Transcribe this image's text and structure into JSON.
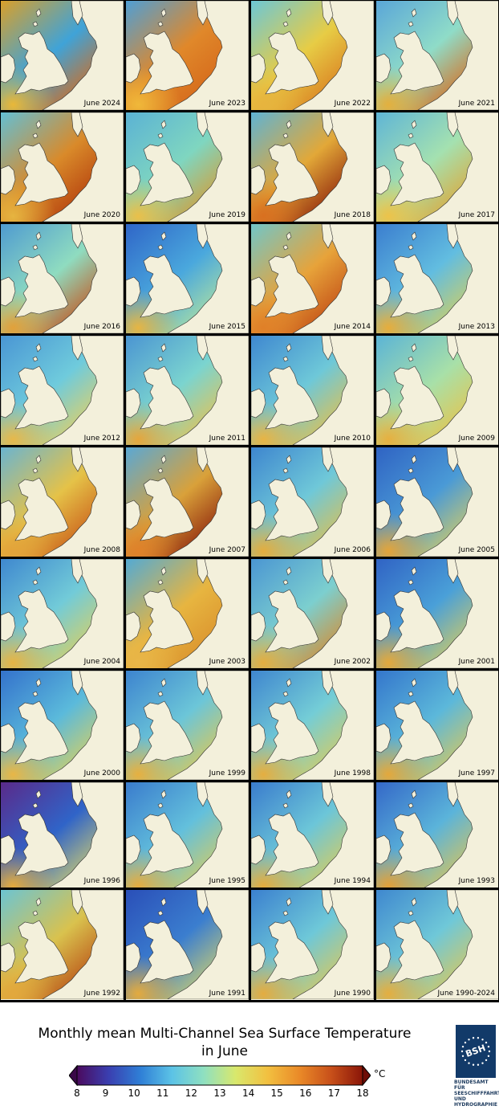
{
  "tiles": [
    {
      "label": "June 2024",
      "colors": [
        "#d9a02a",
        "#3fa3d8",
        "#d96a18",
        "#e9b838"
      ]
    },
    {
      "label": "June 2023",
      "colors": [
        "#4f9fd5",
        "#e0882a",
        "#d4661a",
        "#f0b83a"
      ]
    },
    {
      "label": "June 2022",
      "colors": [
        "#6cc7d6",
        "#e7cc45",
        "#d97a20",
        "#e7b43e"
      ]
    },
    {
      "label": "June 2021",
      "colors": [
        "#5aa6d8",
        "#8fdcc8",
        "#d96b1c",
        "#e3b03e"
      ]
    },
    {
      "label": "June 2020",
      "colors": [
        "#63bfd4",
        "#d98a2a",
        "#b23a0c",
        "#e6b440"
      ]
    },
    {
      "label": "June 2019",
      "colors": [
        "#5bb2d4",
        "#7fd6c0",
        "#d99a30",
        "#e9c04a"
      ]
    },
    {
      "label": "June 2018",
      "colors": [
        "#5fb3d3",
        "#e2a838",
        "#8c1f0a",
        "#d97020"
      ]
    },
    {
      "label": "June 2017",
      "colors": [
        "#5fb5d6",
        "#a4e1b0",
        "#e0a535",
        "#ecc34a"
      ]
    },
    {
      "label": "June 2016",
      "colors": [
        "#4f9bd0",
        "#8fdcc0",
        "#c5511a",
        "#e2a13a"
      ]
    },
    {
      "label": "June 2015",
      "colors": [
        "#2f66c8",
        "#4aa8dd",
        "#b2e3a0",
        "#e6b543"
      ]
    },
    {
      "label": "June 2014",
      "colors": [
        "#71c6c8",
        "#e7a33a",
        "#c04814",
        "#e08028"
      ]
    },
    {
      "label": "June 2013",
      "colors": [
        "#3b7ecf",
        "#62bde0",
        "#d3cf60",
        "#e6ad3c"
      ]
    },
    {
      "label": "June 2012",
      "colors": [
        "#4a96d4",
        "#6fcbdc",
        "#e8d060",
        "#e7b84a"
      ]
    },
    {
      "label": "June 2011",
      "colors": [
        "#4b95d2",
        "#7bd4cf",
        "#e9c250",
        "#e5a63c"
      ]
    },
    {
      "label": "June 2010",
      "colors": [
        "#3f88d0",
        "#6ec8d8",
        "#e7c04a",
        "#e8b444"
      ]
    },
    {
      "label": "June 2009",
      "colors": [
        "#5bb4d6",
        "#a8e0a8",
        "#e8c34a",
        "#e6b040"
      ]
    },
    {
      "label": "June 2008",
      "colors": [
        "#6ab4d0",
        "#e5c248",
        "#c95818",
        "#e3a43a"
      ]
    },
    {
      "label": "June 2007",
      "colors": [
        "#5aa8d4",
        "#d9a13a",
        "#8a1d0a",
        "#e0822a"
      ]
    },
    {
      "label": "June 2006",
      "colors": [
        "#3e86cf",
        "#6fc8d8",
        "#dfc050",
        "#e4ad3e"
      ]
    },
    {
      "label": "June 2005",
      "colors": [
        "#2f63c3",
        "#4a9ad6",
        "#d4cc66",
        "#e3a43a"
      ]
    },
    {
      "label": "June 2004",
      "colors": [
        "#3f88cf",
        "#72cbd8",
        "#dcd060",
        "#e7b444"
      ]
    },
    {
      "label": "June 2003",
      "colors": [
        "#53aad4",
        "#e7b540",
        "#d98f2c",
        "#e9b648"
      ]
    },
    {
      "label": "June 2002",
      "colors": [
        "#4b96d2",
        "#7ccfcf",
        "#d98a2c",
        "#e4ae40"
      ]
    },
    {
      "label": "June 2001",
      "colors": [
        "#3063c4",
        "#4aa0d8",
        "#d5cb62",
        "#e3a83c"
      ]
    },
    {
      "label": "June 2000",
      "colors": [
        "#3472cc",
        "#5bbadb",
        "#d9d060",
        "#e8b646"
      ]
    },
    {
      "label": "June 1999",
      "colors": [
        "#3d84cf",
        "#6cc6d8",
        "#e0c852",
        "#e6b040"
      ]
    },
    {
      "label": "June 1998",
      "colors": [
        "#3f86cf",
        "#74cdd6",
        "#d9cc5e",
        "#e5ae40"
      ]
    },
    {
      "label": "June 1997",
      "colors": [
        "#3476cc",
        "#5cb8da",
        "#d9c85c",
        "#e3a83c"
      ]
    },
    {
      "label": "June 1996",
      "colors": [
        "#5a2a8a",
        "#3064c8",
        "#d2cf70",
        "#e3aa3e"
      ]
    },
    {
      "label": "June 1995",
      "colors": [
        "#3a7ccd",
        "#63c0dc",
        "#d5cc62",
        "#e5ac40"
      ]
    },
    {
      "label": "June 1994",
      "colors": [
        "#3a7ccd",
        "#6cc6d8",
        "#dacc5c",
        "#e4ac3e"
      ]
    },
    {
      "label": "June 1993",
      "colors": [
        "#3468c8",
        "#5bb4da",
        "#d9c45a",
        "#e1a03a"
      ]
    },
    {
      "label": "June 1992",
      "colors": [
        "#6cc4d2",
        "#d9c24e",
        "#b84a14",
        "#e3a83c"
      ]
    },
    {
      "label": "June 1991",
      "colors": [
        "#2a4fb8",
        "#3b7ecf",
        "#cfd070",
        "#e3aa3e"
      ]
    },
    {
      "label": "June 1990",
      "colors": [
        "#3b80cf",
        "#6ec8d8",
        "#dcc85a",
        "#e4ac40"
      ]
    },
    {
      "label": "June 1990-2024",
      "colors": [
        "#3f88cf",
        "#6fc8d8",
        "#dcc85a",
        "#e4ae40"
      ]
    }
  ],
  "legend": {
    "title_line1": "Monthly mean Multi-Channel Sea Surface Temperature",
    "title_line2": "in June",
    "unit": "°C",
    "ticks": [
      "8",
      "9",
      "10",
      "11",
      "12",
      "13",
      "14",
      "15",
      "16",
      "17",
      "18"
    ],
    "min": 8,
    "max": 18,
    "gradient": [
      "#4b0a5e",
      "#3a3fb0",
      "#2f7fd6",
      "#5cc3e6",
      "#8fe0c0",
      "#d9e86c",
      "#f2c040",
      "#ea8a28",
      "#c8501a",
      "#8a1508"
    ]
  },
  "logo": {
    "acronym": "BSH",
    "lines": [
      "BUNDESAMT FÜR",
      "SEESCHIFFFAHRT",
      "UND",
      "HYDROGRAPHIE"
    ]
  }
}
